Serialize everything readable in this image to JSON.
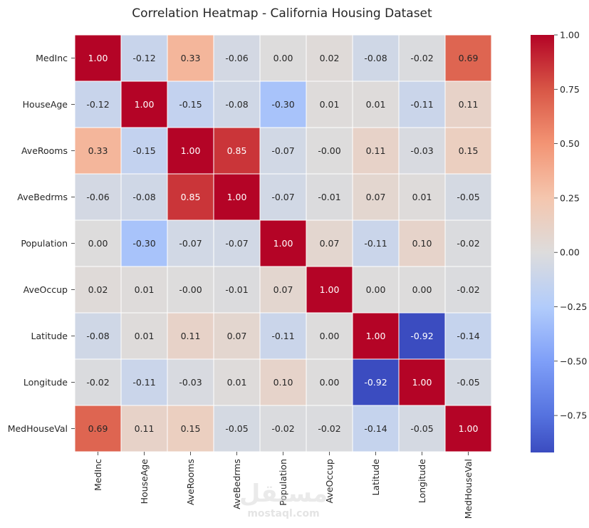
{
  "chart_data": {
    "type": "heatmap",
    "title": "Correlation Heatmap - California Housing Dataset",
    "xlabel": "",
    "ylabel": "",
    "rows": [
      "MedInc",
      "HouseAge",
      "AveRooms",
      "AveBedrms",
      "Population",
      "AveOccup",
      "Latitude",
      "Longitude",
      "MedHouseVal"
    ],
    "columns": [
      "MedInc",
      "HouseAge",
      "AveRooms",
      "AveBedrms",
      "Population",
      "AveOccup",
      "Latitude",
      "Longitude",
      "MedHouseVal"
    ],
    "values": [
      [
        1.0,
        -0.12,
        0.33,
        -0.06,
        0.0,
        0.02,
        -0.08,
        -0.02,
        0.69
      ],
      [
        -0.12,
        1.0,
        -0.15,
        -0.08,
        -0.3,
        0.01,
        0.01,
        -0.11,
        0.11
      ],
      [
        0.33,
        -0.15,
        1.0,
        0.85,
        -0.07,
        -0.0,
        0.11,
        -0.03,
        0.15
      ],
      [
        -0.06,
        -0.08,
        0.85,
        1.0,
        -0.07,
        -0.01,
        0.07,
        0.01,
        -0.05
      ],
      [
        0.0,
        -0.3,
        -0.07,
        -0.07,
        1.0,
        0.07,
        -0.11,
        0.1,
        -0.02
      ],
      [
        0.02,
        0.01,
        -0.0,
        -0.01,
        0.07,
        1.0,
        0.0,
        0.0,
        -0.02
      ],
      [
        -0.08,
        0.01,
        0.11,
        0.07,
        -0.11,
        0.0,
        1.0,
        -0.92,
        -0.14
      ],
      [
        -0.02,
        -0.11,
        -0.03,
        0.01,
        0.1,
        0.0,
        -0.92,
        1.0,
        -0.05
      ],
      [
        0.69,
        0.11,
        0.15,
        -0.05,
        -0.02,
        -0.02,
        -0.14,
        -0.05,
        1.0
      ]
    ],
    "cell_labels": [
      [
        "1.00",
        "-0.12",
        "0.33",
        "-0.06",
        "0.00",
        "0.02",
        "-0.08",
        "-0.02",
        "0.69"
      ],
      [
        "-0.12",
        "1.00",
        "-0.15",
        "-0.08",
        "-0.30",
        "0.01",
        "0.01",
        "-0.11",
        "0.11"
      ],
      [
        "0.33",
        "-0.15",
        "1.00",
        "0.85",
        "-0.07",
        "-0.00",
        "0.11",
        "-0.03",
        "0.15"
      ],
      [
        "-0.06",
        "-0.08",
        "0.85",
        "1.00",
        "-0.07",
        "-0.01",
        "0.07",
        "0.01",
        "-0.05"
      ],
      [
        "0.00",
        "-0.30",
        "-0.07",
        "-0.07",
        "1.00",
        "0.07",
        "-0.11",
        "0.10",
        "-0.02"
      ],
      [
        "0.02",
        "0.01",
        "-0.00",
        "-0.01",
        "0.07",
        "1.00",
        "0.00",
        "0.00",
        "-0.02"
      ],
      [
        "-0.08",
        "0.01",
        "0.11",
        "0.07",
        "-0.11",
        "0.00",
        "1.00",
        "-0.92",
        "-0.14"
      ],
      [
        "-0.02",
        "-0.11",
        "-0.03",
        "0.01",
        "0.10",
        "0.00",
        "-0.92",
        "1.00",
        "-0.05"
      ],
      [
        "0.69",
        "0.11",
        "0.15",
        "-0.05",
        "-0.02",
        "-0.02",
        "-0.14",
        "-0.05",
        "1.00"
      ]
    ],
    "colormap": "coolwarm",
    "colormap_stops": [
      {
        "value": -0.92,
        "color": "#3b4cc0"
      },
      {
        "value": -0.75,
        "color": "#5572df"
      },
      {
        "value": -0.5,
        "color": "#7f9ff8"
      },
      {
        "value": -0.25,
        "color": "#b2ccfb"
      },
      {
        "value": 0.0,
        "color": "#dddcdc"
      },
      {
        "value": 0.25,
        "color": "#f4c6ae"
      },
      {
        "value": 0.5,
        "color": "#f39474"
      },
      {
        "value": 0.75,
        "color": "#d85646"
      },
      {
        "value": 1.0,
        "color": "#b40426"
      }
    ],
    "colorbar": {
      "range": [
        -0.92,
        1.0
      ],
      "ticks": [
        1.0,
        0.75,
        0.5,
        0.25,
        0.0,
        -0.25,
        -0.5,
        -0.75
      ],
      "tick_labels": [
        "1.00",
        "0.75",
        "0.50",
        "0.25",
        "0.00",
        "−0.25",
        "−0.50",
        "−0.75"
      ]
    },
    "grid": true,
    "legend": "colorbar-right"
  },
  "watermark": {
    "arabic": "مستقل",
    "latin": "mostaql.com"
  }
}
